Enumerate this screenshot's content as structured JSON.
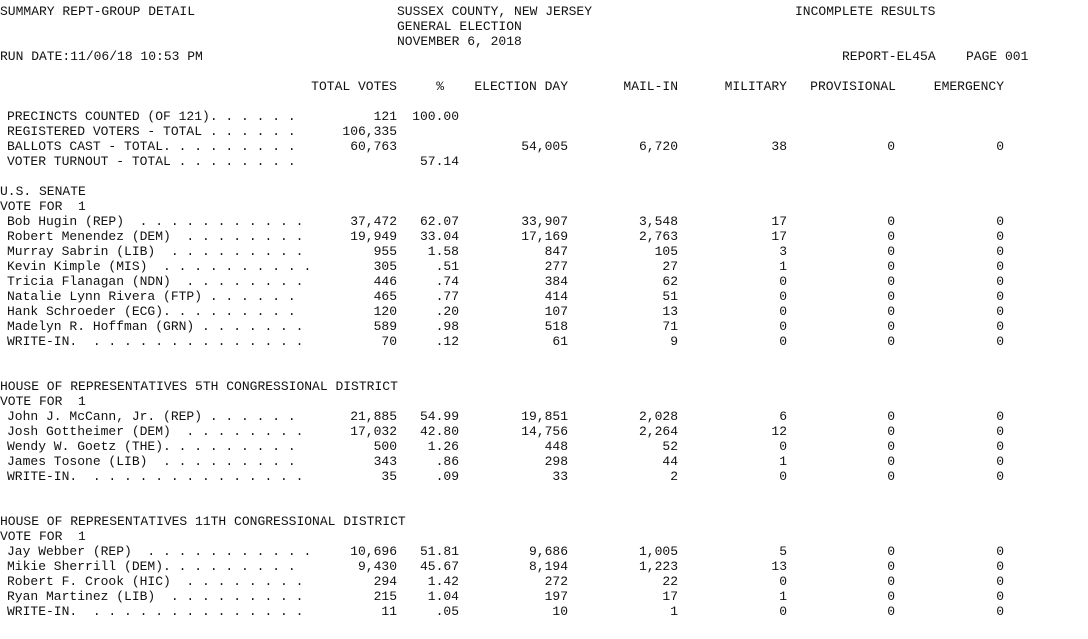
{
  "header": {
    "left": "SUMMARY REPT-GROUP DETAIL",
    "center": [
      "SUSSEX COUNTY, NEW JERSEY",
      "GENERAL ELECTION",
      "NOVEMBER 6, 2018"
    ],
    "right": "INCOMPLETE RESULTS",
    "run_date": "RUN DATE:11/06/18 10:53 PM",
    "report": "REPORT-EL45A",
    "page": "PAGE 001"
  },
  "columns": [
    "TOTAL VOTES",
    "%",
    "ELECTION DAY",
    "MAIL-IN",
    "MILITARY",
    "PROVISIONAL",
    "EMERGENCY"
  ],
  "sections": [
    {
      "rows": [
        {
          "label": "PRECINCTS COUNTED (OF 121). . . . . .",
          "values": [
            "121",
            "100.00",
            null,
            null,
            null,
            null,
            null
          ]
        },
        {
          "label": "REGISTERED VOTERS - TOTAL . . . . . .",
          "values": [
            "106,335",
            null,
            null,
            null,
            null,
            null,
            null
          ]
        },
        {
          "label": "BALLOTS CAST - TOTAL. . . . . . . . .",
          "values": [
            "60,763",
            null,
            "54,005",
            "6,720",
            "38",
            "0",
            "0"
          ]
        },
        {
          "label": "VOTER TURNOUT - TOTAL . . . . . . . .",
          "values": [
            null,
            "57.14",
            null,
            null,
            null,
            null,
            null
          ]
        }
      ]
    },
    {
      "title": "U.S. SENATE",
      "vote_for": "VOTE FOR  1",
      "rows": [
        {
          "label": "Bob Hugin (REP)  . . . . . . . . . . .",
          "values": [
            "37,472",
            "62.07",
            "33,907",
            "3,548",
            "17",
            "0",
            "0"
          ]
        },
        {
          "label": "Robert Menendez (DEM)  . . . . . . . .",
          "values": [
            "19,949",
            "33.04",
            "17,169",
            "2,763",
            "17",
            "0",
            "0"
          ]
        },
        {
          "label": "Murray Sabrin (LIB)  . . . . . . . . .",
          "values": [
            "955",
            "1.58",
            "847",
            "105",
            "3",
            "0",
            "0"
          ]
        },
        {
          "label": "Kevin Kimple (MIS)  . . . . . . . . . .",
          "values": [
            "305",
            ".51",
            "277",
            "27",
            "1",
            "0",
            "0"
          ]
        },
        {
          "label": "Tricia Flanagan (NDN)  . . . . . . . .",
          "values": [
            "446",
            ".74",
            "384",
            "62",
            "0",
            "0",
            "0"
          ]
        },
        {
          "label": "Natalie Lynn Rivera (FTP) . . . . . .",
          "values": [
            "465",
            ".77",
            "414",
            "51",
            "0",
            "0",
            "0"
          ]
        },
        {
          "label": "Hank Schroeder (ECG). . . . . . . . .",
          "values": [
            "120",
            ".20",
            "107",
            "13",
            "0",
            "0",
            "0"
          ]
        },
        {
          "label": "Madelyn R. Hoffman (GRN) . . . . . . .",
          "values": [
            "589",
            ".98",
            "518",
            "71",
            "0",
            "0",
            "0"
          ]
        },
        {
          "label": "WRITE-IN.  . . . . . . . . . . . . . .",
          "values": [
            "70",
            ".12",
            "61",
            "9",
            "0",
            "0",
            "0"
          ]
        }
      ]
    },
    {
      "title": "HOUSE OF REPRESENTATIVES 5TH CONGRESSIONAL DISTRICT",
      "vote_for": "VOTE FOR  1",
      "rows": [
        {
          "label": "John J. McCann, Jr. (REP) . . . . . .",
          "values": [
            "21,885",
            "54.99",
            "19,851",
            "2,028",
            "6",
            "0",
            "0"
          ]
        },
        {
          "label": "Josh Gottheimer (DEM)  . . . . . . . .",
          "values": [
            "17,032",
            "42.80",
            "14,756",
            "2,264",
            "12",
            "0",
            "0"
          ]
        },
        {
          "label": "Wendy W. Goetz (THE). . . . . . . . .",
          "values": [
            "500",
            "1.26",
            "448",
            "52",
            "0",
            "0",
            "0"
          ]
        },
        {
          "label": "James Tosone (LIB)  . . . . . . . . .",
          "values": [
            "343",
            ".86",
            "298",
            "44",
            "1",
            "0",
            "0"
          ]
        },
        {
          "label": "WRITE-IN.  . . . . . . . . . . . . . .",
          "values": [
            "35",
            ".09",
            "33",
            "2",
            "0",
            "0",
            "0"
          ]
        }
      ]
    },
    {
      "title": "HOUSE OF REPRESENTATIVES 11TH CONGRESSIONAL DISTRICT",
      "vote_for": "VOTE FOR  1",
      "rows": [
        {
          "label": "Jay Webber (REP)  . . . . . . . . . . .",
          "values": [
            "10,696",
            "51.81",
            "9,686",
            "1,005",
            "5",
            "0",
            "0"
          ]
        },
        {
          "label": "Mikie Sherrill (DEM). . . . . . . . .",
          "values": [
            "9,430",
            "45.67",
            "8,194",
            "1,223",
            "13",
            "0",
            "0"
          ]
        },
        {
          "label": "Robert F. Crook (HIC)  . . . . . . . .",
          "values": [
            "294",
            "1.42",
            "272",
            "22",
            "0",
            "0",
            "0"
          ]
        },
        {
          "label": "Ryan Martinez (LIB)  . . . . . . . . .",
          "values": [
            "215",
            "1.04",
            "197",
            "17",
            "1",
            "0",
            "0"
          ]
        },
        {
          "label": "WRITE-IN.  . . . . . . . . . . . . . .",
          "values": [
            "11",
            ".05",
            "10",
            "1",
            "0",
            "0",
            "0"
          ]
        }
      ]
    }
  ]
}
